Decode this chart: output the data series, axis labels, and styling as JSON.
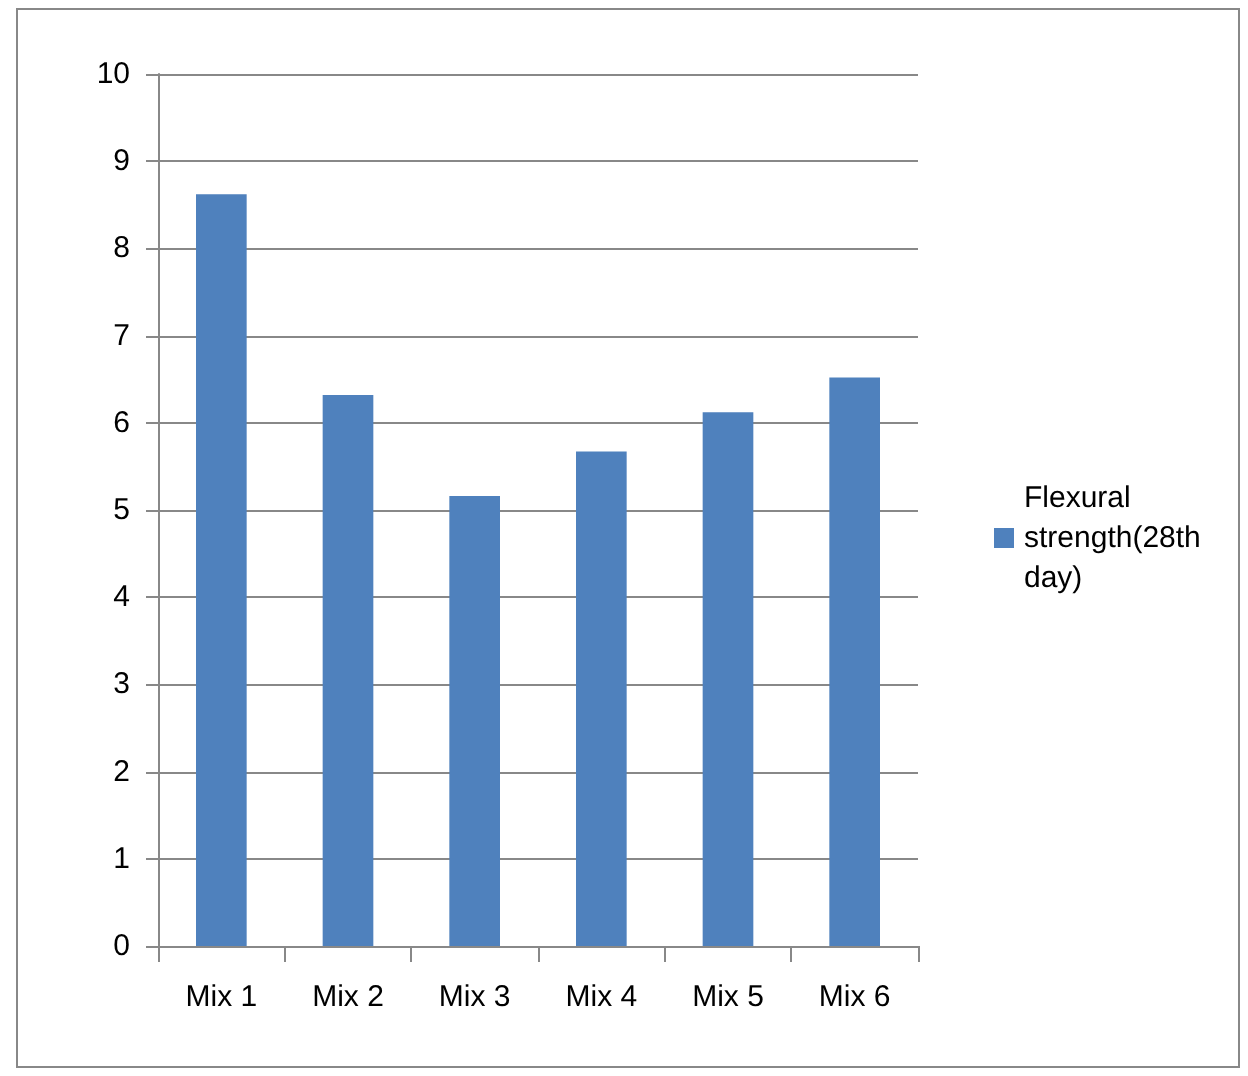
{
  "chart_data": {
    "type": "bar",
    "categories": [
      "Mix 1",
      "Mix 2",
      "Mix 3",
      "Mix 4",
      "Mix 5",
      "Mix 6"
    ],
    "series": [
      {
        "name": "Flexural strength(28th day)",
        "color": "#4f81bd",
        "values": [
          8.62,
          6.32,
          5.16,
          5.67,
          6.12,
          6.52
        ]
      }
    ],
    "ylim": [
      0,
      10
    ],
    "yticks": [
      0,
      1,
      2,
      3,
      4,
      5,
      6,
      7,
      8,
      9,
      10
    ],
    "grid": "y",
    "legend": "right"
  }
}
